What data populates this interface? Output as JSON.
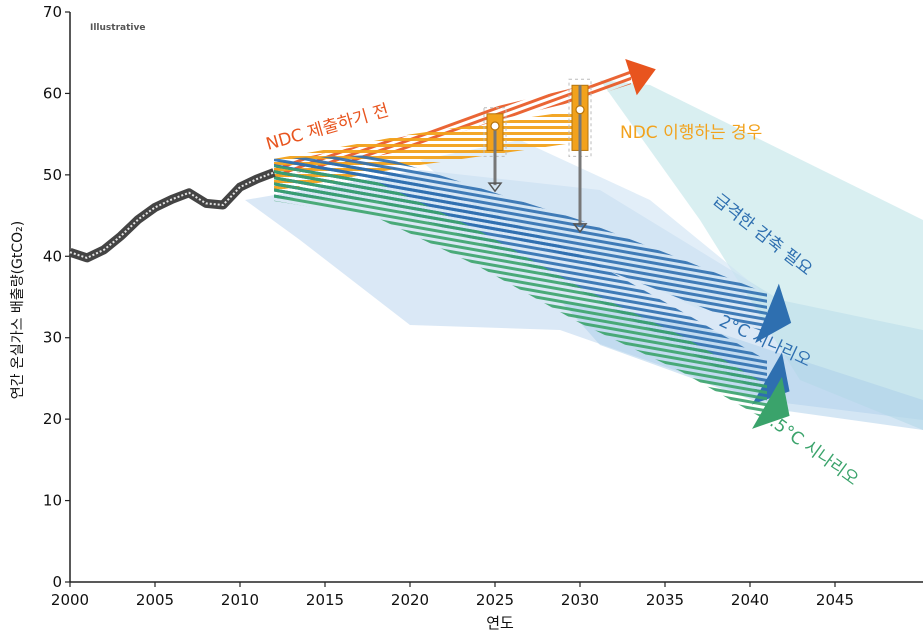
{
  "chart_data": {
    "type": "line",
    "tag": "Illustrative",
    "xlabel": "연도",
    "ylabel": "연간 온실가스 배출량(GtCO₂)",
    "xlim": [
      2000,
      2050
    ],
    "ylim": [
      0,
      70
    ],
    "x_ticks": [
      2000,
      2005,
      2010,
      2015,
      2020,
      2025,
      2030,
      2035,
      2040,
      2045
    ],
    "y_ticks": [
      0,
      10,
      20,
      30,
      40,
      50,
      60,
      70
    ],
    "historical": {
      "x": [
        2000,
        2001,
        2002,
        2003,
        2004,
        2005,
        2006,
        2007,
        2008,
        2009,
        2010,
        2011,
        2012
      ],
      "y": [
        40.5,
        39.8,
        40.8,
        42.5,
        44.5,
        46,
        47,
        47.8,
        46.5,
        46.3,
        48.5,
        49.5,
        50.3
      ]
    },
    "scenarios": [
      {
        "name": "NDC 제출하기 전",
        "color": "#e8541e",
        "x": [
          2012,
          2020,
          2025,
          2030,
          2033
        ],
        "y": [
          50.5,
          54,
          57.5,
          60,
          62
        ]
      },
      {
        "name": "NDC 이행하는 경우",
        "color": "#f2a21c",
        "x": [
          2012,
          2020,
          2025,
          2030
        ],
        "y": [
          50,
          53,
          54.5,
          56
        ]
      },
      {
        "name": "급격한 감축 필요",
        "color": "#2e6fb0",
        "x": [
          2012,
          2018,
          2024,
          2030,
          2035,
          2041
        ],
        "y": [
          49.5,
          50,
          46,
          42,
          38,
          33
        ]
      },
      {
        "name": "2°C 시나리오",
        "color": "#2e6fb0",
        "x": [
          2012,
          2018,
          2024,
          2030,
          2036,
          2041
        ],
        "y": [
          49.5,
          49,
          44,
          38,
          31,
          25
        ]
      },
      {
        "name": "1.5°C 시나리오",
        "color": "#3aa36b",
        "x": [
          2012,
          2018,
          2024,
          2030,
          2036,
          2041
        ],
        "y": [
          49,
          47,
          41,
          34,
          28,
          22
        ]
      }
    ],
    "ndc_markers": [
      {
        "x": 2025,
        "low": 53,
        "high": 57.5,
        "marker": 56,
        "arrow_from": 56,
        "arrow_to": 48
      },
      {
        "x": 2030,
        "low": 53,
        "high": 61,
        "marker": 58,
        "arrow_from": 61,
        "arrow_to": 43
      }
    ],
    "grid": false,
    "legend": "none"
  }
}
